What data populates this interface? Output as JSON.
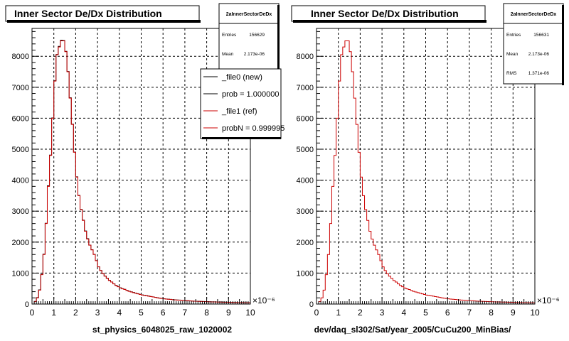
{
  "window": {
    "footer_text": ""
  },
  "chart_data": [
    {
      "type": "histogram",
      "title": "Inner Sector De/Dx Distribution",
      "xlabel": "st_physics_6048025_raw_1020002",
      "x_exponent": "×10⁻⁶",
      "xlim": [
        0,
        10
      ],
      "ylim": [
        0,
        8900
      ],
      "x_ticks": [
        0,
        1,
        2,
        3,
        4,
        5,
        6,
        7,
        8,
        9,
        10
      ],
      "y_ticks": [
        0,
        1000,
        2000,
        3000,
        4000,
        5000,
        6000,
        7000,
        8000
      ],
      "bin_width": 0.1,
      "bins_x_start": 0,
      "values": [
        0,
        80,
        200,
        450,
        950,
        1600,
        2600,
        3800,
        4800,
        6000,
        7200,
        8050,
        8300,
        8500,
        8500,
        8150,
        7500,
        6650,
        5800,
        4900,
        4100,
        3500,
        3050,
        2700,
        2350,
        2100,
        1900,
        1750,
        1600,
        1400,
        1200,
        1080,
        980,
        900,
        830,
        760,
        710,
        650,
        600,
        560,
        520,
        490,
        470,
        440,
        410,
        390,
        370,
        350,
        330,
        310,
        290,
        280,
        270,
        255,
        240,
        230,
        215,
        200,
        190,
        180,
        170,
        160,
        155,
        150,
        140,
        135,
        130,
        125,
        120,
        115,
        110,
        105,
        100,
        95,
        92,
        88,
        85,
        82,
        80,
        78,
        75,
        72,
        70,
        68,
        66,
        64,
        62,
        60,
        58,
        56,
        54,
        52,
        50,
        48,
        47,
        46,
        45,
        44,
        43,
        42
      ],
      "ref_values": [
        0,
        85,
        210,
        460,
        960,
        1610,
        2610,
        3820,
        4810,
        6010,
        7210,
        8060,
        8320,
        8520,
        8510,
        8160,
        7510,
        6660,
        5810,
        4910,
        4110,
        3510,
        3060,
        2710,
        2360,
        2110,
        1905,
        1755,
        1605,
        1405,
        1205,
        1085,
        985,
        905,
        835,
        765,
        715,
        655,
        605,
        565,
        525,
        495,
        475,
        445,
        415,
        395,
        375,
        355,
        335,
        315,
        295,
        285,
        275,
        258,
        243,
        233,
        218,
        203,
        193,
        183,
        173,
        163,
        158,
        153,
        143,
        138,
        133,
        128,
        123,
        118,
        113,
        108,
        103,
        98,
        95,
        91,
        88,
        85,
        83,
        81,
        78,
        75,
        73,
        71,
        69,
        67,
        65,
        63,
        61,
        59,
        57,
        55,
        53,
        51,
        50,
        49,
        48,
        47,
        46,
        45
      ],
      "series": [
        {
          "name": "_file0 (new)",
          "color": "#000000"
        },
        {
          "name": "_file1 (ref)",
          "color": "#cc0000"
        }
      ],
      "stats": {
        "name": "2aInnerSectorDeDx",
        "rows": [
          {
            "label": "Entries",
            "value": "156629"
          },
          {
            "label": "Mean",
            "value": "2.173e-06"
          }
        ]
      },
      "legend": {
        "entries": [
          {
            "text": "_file0 (new)",
            "color": "#000000"
          },
          {
            "text": "prob = 1.000000",
            "color": "#000000"
          },
          {
            "text": "_file1 (ref)",
            "color": "#cc0000"
          },
          {
            "text": "probN = 0.999995",
            "color": "#cc0000"
          }
        ]
      }
    },
    {
      "type": "histogram",
      "title": "Inner Sector De/Dx Distribution",
      "xlabel": "dev/daq_sl302/Sat/year_2005/CuCu200_MinBias/",
      "x_exponent": "×10⁻⁶",
      "xlim": [
        0,
        10
      ],
      "ylim": [
        0,
        8900
      ],
      "x_ticks": [
        0,
        1,
        2,
        3,
        4,
        5,
        6,
        7,
        8,
        9,
        10
      ],
      "y_ticks": [
        0,
        1000,
        2000,
        3000,
        4000,
        5000,
        6000,
        7000,
        8000
      ],
      "bin_width": 0.1,
      "bins_x_start": 0,
      "values": [
        0,
        80,
        200,
        450,
        950,
        1600,
        2600,
        3800,
        4800,
        6000,
        7200,
        8050,
        8300,
        8500,
        8500,
        8150,
        7500,
        6650,
        5800,
        4900,
        4100,
        3500,
        3050,
        2700,
        2350,
        2100,
        1900,
        1750,
        1600,
        1400,
        1200,
        1080,
        980,
        900,
        830,
        760,
        710,
        650,
        600,
        560,
        520,
        490,
        470,
        440,
        410,
        390,
        370,
        350,
        330,
        310,
        290,
        280,
        270,
        255,
        240,
        230,
        215,
        200,
        190,
        180,
        170,
        160,
        155,
        150,
        140,
        135,
        130,
        125,
        120,
        115,
        110,
        105,
        100,
        95,
        92,
        88,
        85,
        82,
        80,
        78,
        75,
        72,
        70,
        68,
        66,
        64,
        62,
        60,
        58,
        56,
        54,
        52,
        50,
        48,
        47,
        46,
        45,
        44,
        43,
        42
      ],
      "series": [
        {
          "name": "",
          "color": "#cc0000"
        }
      ],
      "stats": {
        "name": "2aInnerSectorDeDx",
        "rows": [
          {
            "label": "Entries",
            "value": "156631"
          },
          {
            "label": "Mean",
            "value": "2.173e-06"
          },
          {
            "label": "RMS",
            "value": "1.371e-06"
          }
        ]
      }
    }
  ]
}
